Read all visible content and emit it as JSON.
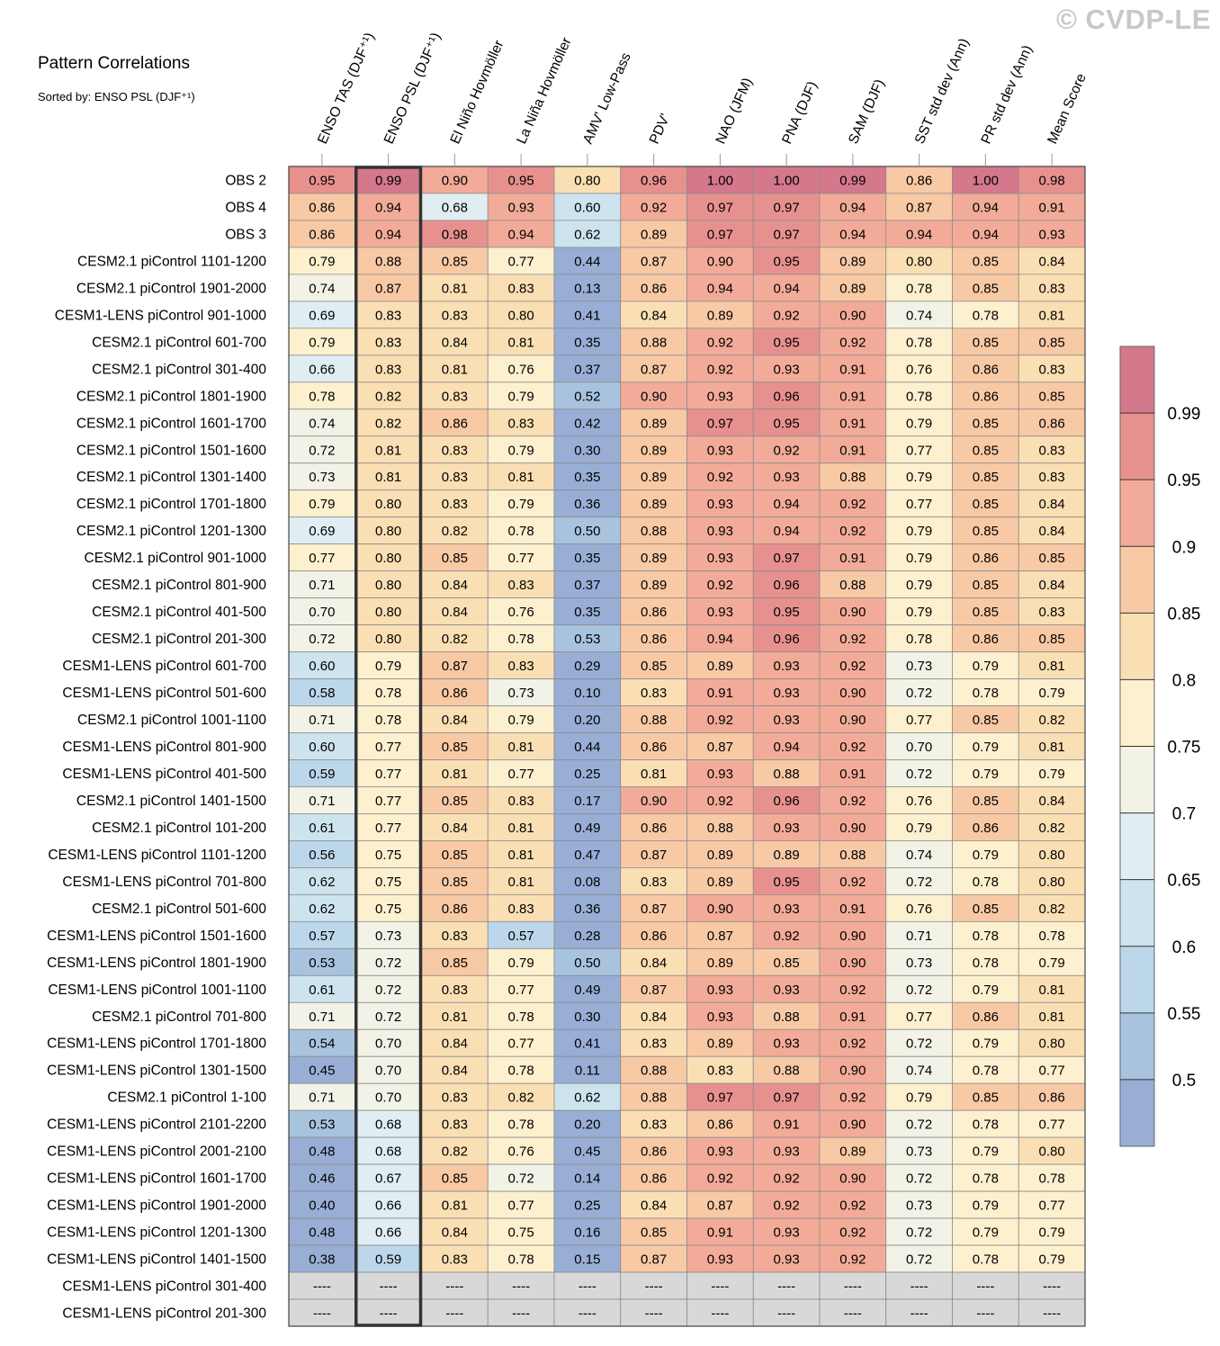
{
  "chart_data": {
    "type": "heatmap",
    "title": "Pattern Correlations",
    "subtitle": "Sorted by: ENSO PSL (DJF⁺¹)",
    "watermark": "© CVDP-LE",
    "columns": [
      "ENSO TAS (DJF⁺¹)",
      "ENSO PSL (DJF⁺¹)",
      "El Niño Hovmöller",
      "La Niña Hovmöller",
      "AMV' Low-Pass",
      "PDV'",
      "NAO (JFM)",
      "PNA (DJF)",
      "SAM (DJF)",
      "SST std dev (Ann)",
      "PR std dev (Ann)",
      "Mean Score"
    ],
    "sorted_column": "ENSO PSL (DJF⁺¹)",
    "rows": [
      "OBS 2",
      "OBS 4",
      "OBS 3",
      "CESM2.1 piControl 1101-1200",
      "CESM2.1 piControl 1901-2000",
      "CESM1-LENS piControl 901-1000",
      "CESM2.1 piControl 601-700",
      "CESM2.1 piControl 301-400",
      "CESM2.1 piControl 1801-1900",
      "CESM2.1 piControl 1601-1700",
      "CESM2.1 piControl 1501-1600",
      "CESM2.1 piControl 1301-1400",
      "CESM2.1 piControl 1701-1800",
      "CESM2.1 piControl 1201-1300",
      "CESM2.1 piControl 901-1000",
      "CESM2.1 piControl 801-900",
      "CESM2.1 piControl 401-500",
      "CESM2.1 piControl 201-300",
      "CESM1-LENS piControl 601-700",
      "CESM1-LENS piControl 501-600",
      "CESM2.1 piControl 1001-1100",
      "CESM1-LENS piControl 801-900",
      "CESM1-LENS piControl 401-500",
      "CESM2.1 piControl 1401-1500",
      "CESM2.1 piControl 101-200",
      "CESM1-LENS piControl 1101-1200",
      "CESM1-LENS piControl 701-800",
      "CESM2.1 piControl 501-600",
      "CESM1-LENS piControl 1501-1600",
      "CESM1-LENS piControl 1801-1900",
      "CESM1-LENS piControl 1001-1100",
      "CESM2.1 piControl 701-800",
      "CESM1-LENS piControl 1701-1800",
      "CESM1-LENS piControl 1301-1500",
      "CESM2.1 piControl 1-100",
      "CESM1-LENS piControl 2101-2200",
      "CESM1-LENS piControl 2001-2100",
      "CESM1-LENS piControl 1601-1700",
      "CESM1-LENS piControl 1901-2000",
      "CESM1-LENS piControl 1201-1300",
      "CESM1-LENS piControl 1401-1500",
      "CESM1-LENS piControl 301-400",
      "CESM1-LENS piControl 201-300"
    ],
    "values": [
      [
        "0.95",
        "0.99",
        "0.90",
        "0.95",
        "0.80",
        "0.96",
        "1.00",
        "1.00",
        "0.99",
        "0.86",
        "1.00",
        "0.98"
      ],
      [
        "0.86",
        "0.94",
        "0.68",
        "0.93",
        "0.60",
        "0.92",
        "0.97",
        "0.97",
        "0.94",
        "0.87",
        "0.94",
        "0.91"
      ],
      [
        "0.86",
        "0.94",
        "0.98",
        "0.94",
        "0.62",
        "0.89",
        "0.97",
        "0.97",
        "0.94",
        "0.94",
        "0.94",
        "0.93"
      ],
      [
        "0.79",
        "0.88",
        "0.85",
        "0.77",
        "0.44",
        "0.87",
        "0.90",
        "0.95",
        "0.89",
        "0.80",
        "0.85",
        "0.84"
      ],
      [
        "0.74",
        "0.87",
        "0.81",
        "0.83",
        "0.13",
        "0.86",
        "0.94",
        "0.94",
        "0.89",
        "0.78",
        "0.85",
        "0.83"
      ],
      [
        "0.69",
        "0.83",
        "0.83",
        "0.80",
        "0.41",
        "0.84",
        "0.89",
        "0.92",
        "0.90",
        "0.74",
        "0.78",
        "0.81"
      ],
      [
        "0.79",
        "0.83",
        "0.84",
        "0.81",
        "0.35",
        "0.88",
        "0.92",
        "0.95",
        "0.92",
        "0.78",
        "0.85",
        "0.85"
      ],
      [
        "0.66",
        "0.83",
        "0.81",
        "0.76",
        "0.37",
        "0.87",
        "0.92",
        "0.93",
        "0.91",
        "0.76",
        "0.86",
        "0.83"
      ],
      [
        "0.78",
        "0.82",
        "0.83",
        "0.79",
        "0.52",
        "0.90",
        "0.93",
        "0.96",
        "0.91",
        "0.78",
        "0.86",
        "0.85"
      ],
      [
        "0.74",
        "0.82",
        "0.86",
        "0.83",
        "0.42",
        "0.89",
        "0.97",
        "0.95",
        "0.91",
        "0.79",
        "0.85",
        "0.86"
      ],
      [
        "0.72",
        "0.81",
        "0.83",
        "0.79",
        "0.30",
        "0.89",
        "0.93",
        "0.92",
        "0.91",
        "0.77",
        "0.85",
        "0.83"
      ],
      [
        "0.73",
        "0.81",
        "0.83",
        "0.81",
        "0.35",
        "0.89",
        "0.92",
        "0.93",
        "0.88",
        "0.79",
        "0.85",
        "0.83"
      ],
      [
        "0.79",
        "0.80",
        "0.83",
        "0.79",
        "0.36",
        "0.89",
        "0.93",
        "0.94",
        "0.92",
        "0.77",
        "0.85",
        "0.84"
      ],
      [
        "0.69",
        "0.80",
        "0.82",
        "0.78",
        "0.50",
        "0.88",
        "0.93",
        "0.94",
        "0.92",
        "0.79",
        "0.85",
        "0.84"
      ],
      [
        "0.77",
        "0.80",
        "0.85",
        "0.77",
        "0.35",
        "0.89",
        "0.93",
        "0.97",
        "0.91",
        "0.79",
        "0.86",
        "0.85"
      ],
      [
        "0.71",
        "0.80",
        "0.84",
        "0.83",
        "0.37",
        "0.89",
        "0.92",
        "0.96",
        "0.88",
        "0.79",
        "0.85",
        "0.84"
      ],
      [
        "0.70",
        "0.80",
        "0.84",
        "0.76",
        "0.35",
        "0.86",
        "0.93",
        "0.95",
        "0.90",
        "0.79",
        "0.85",
        "0.83"
      ],
      [
        "0.72",
        "0.80",
        "0.82",
        "0.78",
        "0.53",
        "0.86",
        "0.94",
        "0.96",
        "0.92",
        "0.78",
        "0.86",
        "0.85"
      ],
      [
        "0.60",
        "0.79",
        "0.87",
        "0.83",
        "0.29",
        "0.85",
        "0.89",
        "0.93",
        "0.92",
        "0.73",
        "0.79",
        "0.81"
      ],
      [
        "0.58",
        "0.78",
        "0.86",
        "0.73",
        "0.10",
        "0.83",
        "0.91",
        "0.93",
        "0.90",
        "0.72",
        "0.78",
        "0.79"
      ],
      [
        "0.71",
        "0.78",
        "0.84",
        "0.79",
        "0.20",
        "0.88",
        "0.92",
        "0.93",
        "0.90",
        "0.77",
        "0.85",
        "0.82"
      ],
      [
        "0.60",
        "0.77",
        "0.85",
        "0.81",
        "0.44",
        "0.86",
        "0.87",
        "0.94",
        "0.92",
        "0.70",
        "0.79",
        "0.81"
      ],
      [
        "0.59",
        "0.77",
        "0.81",
        "0.77",
        "0.25",
        "0.81",
        "0.93",
        "0.88",
        "0.91",
        "0.72",
        "0.79",
        "0.79"
      ],
      [
        "0.71",
        "0.77",
        "0.85",
        "0.83",
        "0.17",
        "0.90",
        "0.92",
        "0.96",
        "0.92",
        "0.76",
        "0.85",
        "0.84"
      ],
      [
        "0.61",
        "0.77",
        "0.84",
        "0.81",
        "0.49",
        "0.86",
        "0.88",
        "0.93",
        "0.90",
        "0.79",
        "0.86",
        "0.82"
      ],
      [
        "0.56",
        "0.75",
        "0.85",
        "0.81",
        "0.47",
        "0.87",
        "0.89",
        "0.89",
        "0.88",
        "0.74",
        "0.79",
        "0.80"
      ],
      [
        "0.62",
        "0.75",
        "0.85",
        "0.81",
        "0.08",
        "0.83",
        "0.89",
        "0.95",
        "0.92",
        "0.72",
        "0.78",
        "0.80"
      ],
      [
        "0.62",
        "0.75",
        "0.86",
        "0.83",
        "0.36",
        "0.87",
        "0.90",
        "0.93",
        "0.91",
        "0.76",
        "0.85",
        "0.82"
      ],
      [
        "0.57",
        "0.73",
        "0.83",
        "0.57",
        "0.28",
        "0.86",
        "0.87",
        "0.92",
        "0.90",
        "0.71",
        "0.78",
        "0.78"
      ],
      [
        "0.53",
        "0.72",
        "0.85",
        "0.79",
        "0.50",
        "0.84",
        "0.89",
        "0.85",
        "0.90",
        "0.73",
        "0.78",
        "0.79"
      ],
      [
        "0.61",
        "0.72",
        "0.83",
        "0.77",
        "0.49",
        "0.87",
        "0.93",
        "0.93",
        "0.92",
        "0.72",
        "0.79",
        "0.81"
      ],
      [
        "0.71",
        "0.72",
        "0.81",
        "0.78",
        "0.30",
        "0.84",
        "0.93",
        "0.88",
        "0.91",
        "0.77",
        "0.86",
        "0.81"
      ],
      [
        "0.54",
        "0.70",
        "0.84",
        "0.77",
        "0.41",
        "0.83",
        "0.89",
        "0.93",
        "0.92",
        "0.72",
        "0.79",
        "0.80"
      ],
      [
        "0.45",
        "0.70",
        "0.84",
        "0.78",
        "0.11",
        "0.88",
        "0.83",
        "0.88",
        "0.90",
        "0.74",
        "0.78",
        "0.77"
      ],
      [
        "0.71",
        "0.70",
        "0.83",
        "0.82",
        "0.62",
        "0.88",
        "0.97",
        "0.97",
        "0.92",
        "0.79",
        "0.85",
        "0.86"
      ],
      [
        "0.53",
        "0.68",
        "0.83",
        "0.78",
        "0.20",
        "0.83",
        "0.86",
        "0.91",
        "0.90",
        "0.72",
        "0.78",
        "0.77"
      ],
      [
        "0.48",
        "0.68",
        "0.82",
        "0.76",
        "0.45",
        "0.86",
        "0.93",
        "0.93",
        "0.89",
        "0.73",
        "0.79",
        "0.80"
      ],
      [
        "0.46",
        "0.67",
        "0.85",
        "0.72",
        "0.14",
        "0.86",
        "0.92",
        "0.92",
        "0.90",
        "0.72",
        "0.78",
        "0.78"
      ],
      [
        "0.40",
        "0.66",
        "0.81",
        "0.77",
        "0.25",
        "0.84",
        "0.87",
        "0.92",
        "0.92",
        "0.73",
        "0.79",
        "0.77"
      ],
      [
        "0.48",
        "0.66",
        "0.84",
        "0.75",
        "0.16",
        "0.85",
        "0.91",
        "0.93",
        "0.92",
        "0.72",
        "0.79",
        "0.79"
      ],
      [
        "0.38",
        "0.59",
        "0.83",
        "0.78",
        "0.15",
        "0.87",
        "0.93",
        "0.93",
        "0.92",
        "0.72",
        "0.78",
        "0.79"
      ],
      [
        "----",
        "----",
        "----",
        "----",
        "----",
        "----",
        "----",
        "----",
        "----",
        "----",
        "----",
        "----"
      ],
      [
        "----",
        "----",
        "----",
        "----",
        "----",
        "----",
        "----",
        "----",
        "----",
        "----",
        "----",
        "----"
      ]
    ],
    "colorbar": {
      "labels": [
        "0.99",
        "0.95",
        "0.9",
        "0.85",
        "0.8",
        "0.75",
        "0.7",
        "0.65",
        "0.6",
        "0.55",
        "0.5"
      ],
      "colors": [
        "#d4788b",
        "#e7918f",
        "#f2ab98",
        "#f8c9a5",
        "#fbdfb4",
        "#fdf0cf",
        "#f2f2e6",
        "#e0eef4",
        "#cde4ef",
        "#bcd7e9",
        "#a8c3de",
        "#98aed5"
      ],
      "missing_color": "#d8d8d8"
    }
  }
}
